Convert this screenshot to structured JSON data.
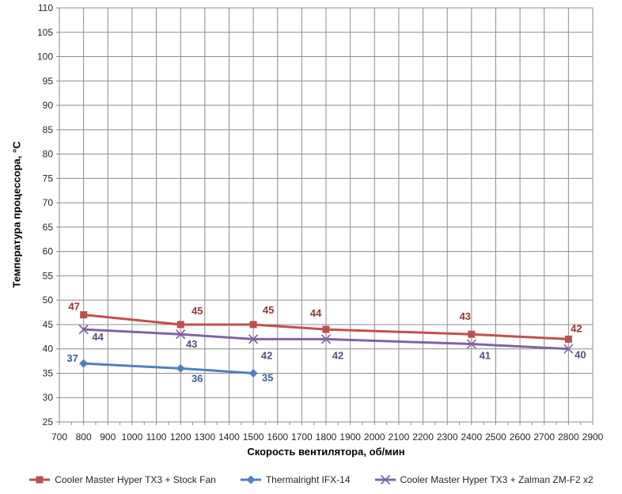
{
  "chart_data": {
    "type": "line",
    "xlabel": "Скорость вентилятора, об/мин",
    "ylabel": "Температура процессора, °C",
    "xlim": [
      700,
      2900
    ],
    "ylim": [
      25,
      110
    ],
    "x_tick_step": 100,
    "x_minor_tick_step": 50,
    "y_tick_step": 5,
    "grid": true,
    "legend_position": "bottom",
    "colors": {
      "grid": "#8C8C8C",
      "axis_text": "#262626",
      "background": "#FFFFFF"
    },
    "series": [
      {
        "name": "Cooler Master Hyper TX3 + Stock Fan",
        "marker": "square",
        "color": "#C0504D",
        "label_color": "#943634",
        "x": [
          800,
          1200,
          1500,
          1800,
          2400,
          2800
        ],
        "y": [
          47,
          45,
          45,
          44,
          43,
          42
        ],
        "label_offsets": [
          [
            -12,
            -10
          ],
          [
            21,
            -17
          ],
          [
            19,
            -18
          ],
          [
            -13,
            -20
          ],
          [
            -8,
            -22
          ],
          [
            10,
            -13
          ]
        ]
      },
      {
        "name": "Thermalright IFX-14",
        "marker": "diamond",
        "color": "#4F81BD",
        "label_color": "#366092",
        "x": [
          800,
          1200,
          1500
        ],
        "y": [
          37,
          36,
          35
        ],
        "label_offsets": [
          [
            -14,
            -6
          ],
          [
            21,
            13
          ],
          [
            18,
            6
          ]
        ]
      },
      {
        "name": "Cooler Master Hyper TX3 + Zalman ZM-F2 x2",
        "marker": "x",
        "color": "#8064A2",
        "label_color": "#604A7B",
        "x": [
          800,
          1200,
          1500,
          1800,
          2400,
          2800
        ],
        "y": [
          44,
          43,
          42,
          42,
          41,
          40
        ],
        "label_offsets": [
          [
            18,
            10
          ],
          [
            14,
            13
          ],
          [
            17,
            21
          ],
          [
            15,
            21
          ],
          [
            17,
            15
          ],
          [
            15,
            8
          ]
        ]
      }
    ]
  }
}
